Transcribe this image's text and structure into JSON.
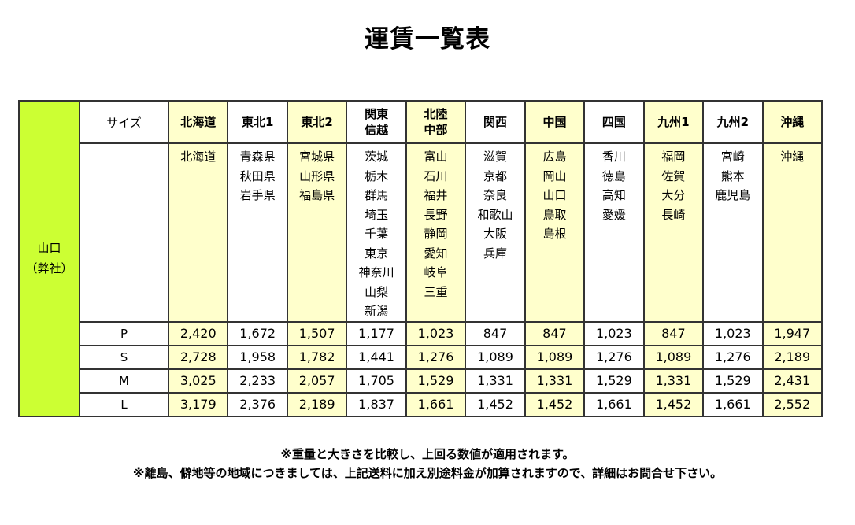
{
  "page": {
    "title": "運賃一覧表",
    "notes": [
      "※重量と大きさを比較し、上回る数値が適用されます。",
      "※離島、僻地等の地域につきましては、上記送料に加え別途料金が加算されますので、詳細はお問合せ下さい。"
    ]
  },
  "colors": {
    "origin_green": "#CCFF33",
    "column_yellow": "#FFFFCC",
    "border": "#333333"
  },
  "table": {
    "origin_label": "山口\n（弊社）",
    "size_header": "サイズ",
    "size_labels": [
      "P",
      "S",
      "M",
      "L"
    ],
    "columns": [
      {
        "label": "北海道",
        "prefectures": [
          "北海道"
        ],
        "fares": [
          "2,420",
          "2,728",
          "3,025",
          "3,179"
        ]
      },
      {
        "label": "東北1",
        "prefectures": [
          "青森県",
          "秋田県",
          "岩手県"
        ],
        "fares": [
          "1,672",
          "1,958",
          "2,233",
          "2,376"
        ]
      },
      {
        "label": "東北2",
        "prefectures": [
          "宮城県",
          "山形県",
          "福島県"
        ],
        "fares": [
          "1,507",
          "1,782",
          "2,057",
          "2,189"
        ]
      },
      {
        "label": "関東\n信越",
        "prefectures": [
          "茨城",
          "栃木",
          "群馬",
          "埼玉",
          "千葉",
          "東京",
          "神奈川",
          "山梨",
          "新潟"
        ],
        "fares": [
          "1,177",
          "1,441",
          "1,705",
          "1,837"
        ]
      },
      {
        "label": "北陸\n中部",
        "prefectures": [
          "富山",
          "石川",
          "福井",
          "長野",
          "静岡",
          "愛知",
          "岐阜",
          "三重"
        ],
        "fares": [
          "1,023",
          "1,276",
          "1,529",
          "1,661"
        ]
      },
      {
        "label": "関西",
        "prefectures": [
          "滋賀",
          "京都",
          "奈良",
          "和歌山",
          "大阪",
          "兵庫"
        ],
        "fares": [
          "847",
          "1,089",
          "1,331",
          "1,452"
        ]
      },
      {
        "label": "中国",
        "prefectures": [
          "広島",
          "岡山",
          "山口",
          "鳥取",
          "島根"
        ],
        "fares": [
          "847",
          "1,089",
          "1,331",
          "1,452"
        ]
      },
      {
        "label": "四国",
        "prefectures": [
          "香川",
          "徳島",
          "高知",
          "愛媛"
        ],
        "fares": [
          "1,023",
          "1,276",
          "1,529",
          "1,661"
        ]
      },
      {
        "label": "九州1",
        "prefectures": [
          "福岡",
          "佐賀",
          "大分",
          "長崎"
        ],
        "fares": [
          "847",
          "1,089",
          "1,331",
          "1,452"
        ]
      },
      {
        "label": "九州2",
        "prefectures": [
          "宮崎",
          "熊本",
          "鹿児島"
        ],
        "fares": [
          "1,023",
          "1,276",
          "1,529",
          "1,661"
        ]
      },
      {
        "label": "沖縄",
        "prefectures": [
          "沖縄"
        ],
        "fares": [
          "1,947",
          "2,189",
          "2,431",
          "2,552"
        ]
      }
    ]
  }
}
